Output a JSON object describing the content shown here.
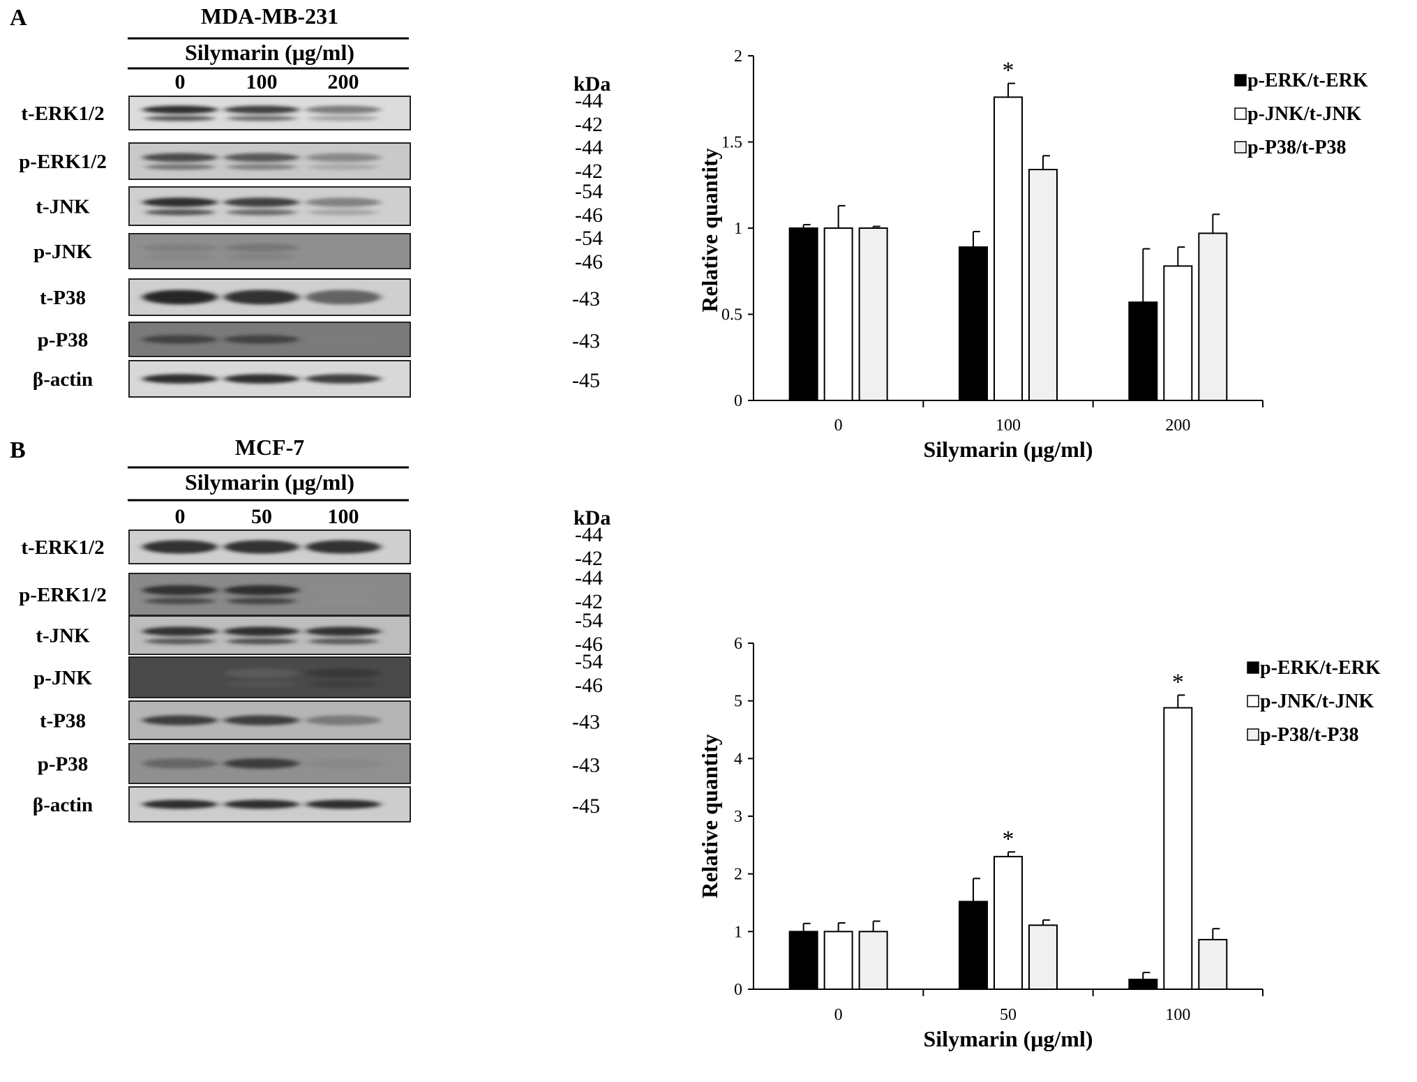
{
  "panels": [
    {
      "letter": "A",
      "cell_line": "MDA-MB-231",
      "treatment_label": "Silymarin (μg/ml)",
      "doses": [
        "0",
        "100",
        "200"
      ],
      "kda_label": "kDa",
      "rows": [
        {
          "label": "t-ERK1/2",
          "kda": [
            "-44",
            "-42"
          ]
        },
        {
          "label": "p-ERK1/2",
          "kda": [
            "-44",
            "-42"
          ]
        },
        {
          "label": "t-JNK",
          "kda": [
            "-54",
            "-46"
          ]
        },
        {
          "label": "p-JNK",
          "kda": [
            "-54",
            "-46"
          ]
        },
        {
          "label": "t-P38",
          "kda": [
            "-43"
          ]
        },
        {
          "label": "p-P38",
          "kda": [
            "-43"
          ]
        },
        {
          "label": "β-actin",
          "kda": [
            "-45"
          ]
        }
      ]
    },
    {
      "letter": "B",
      "cell_line": "MCF-7",
      "treatment_label": "Silymarin (μg/ml)",
      "doses": [
        "0",
        "50",
        "100"
      ],
      "kda_label": "kDa",
      "rows": [
        {
          "label": "t-ERK1/2",
          "kda": [
            "-44",
            "-42"
          ]
        },
        {
          "label": "p-ERK1/2",
          "kda": [
            "-44",
            "-42"
          ]
        },
        {
          "label": "t-JNK",
          "kda": [
            "-54",
            "-46"
          ]
        },
        {
          "label": "p-JNK",
          "kda": [
            "-54",
            "-46"
          ]
        },
        {
          "label": "t-P38",
          "kda": [
            "-43"
          ]
        },
        {
          "label": "p-P38",
          "kda": [
            "-43"
          ]
        },
        {
          "label": "β-actin",
          "kda": [
            "-45"
          ]
        }
      ]
    }
  ],
  "chart_data": [
    {
      "type": "bar",
      "title": "",
      "xlabel": "Silymarin (μg/ml)",
      "ylabel": "Relative quantity",
      "categories": [
        "0",
        "100",
        "200"
      ],
      "ylim": [
        0,
        2
      ],
      "yticks": [
        "0",
        "0.5",
        "1",
        "1.5",
        "2"
      ],
      "legend_position": "top-right",
      "series": [
        {
          "name": "p-ERK/t-ERK",
          "color": "#000000",
          "values": [
            1.0,
            0.89,
            0.57
          ],
          "errors": [
            0.02,
            0.09,
            0.31
          ]
        },
        {
          "name": "p-JNK/t-JNK",
          "color": "#ffffff",
          "values": [
            1.0,
            1.76,
            0.78
          ],
          "errors": [
            0.13,
            0.08,
            0.11
          ]
        },
        {
          "name": "p-P38/t-P38",
          "color": "#f0f0f0",
          "values": [
            1.0,
            1.34,
            0.97
          ],
          "errors": [
            0.01,
            0.08,
            0.11
          ]
        }
      ],
      "annotations": [
        {
          "text": "*",
          "series": 1,
          "category": 1
        }
      ]
    },
    {
      "type": "bar",
      "title": "",
      "xlabel": "Silymarin (μg/ml)",
      "ylabel": "Relative quantity",
      "categories": [
        "0",
        "50",
        "100"
      ],
      "ylim": [
        0,
        6
      ],
      "yticks": [
        "0",
        "1",
        "2",
        "3",
        "4",
        "5",
        "6"
      ],
      "legend_position": "top-right",
      "series": [
        {
          "name": "p-ERK/t-ERK",
          "color": "#000000",
          "values": [
            1.0,
            1.52,
            0.17
          ],
          "errors": [
            0.14,
            0.4,
            0.12
          ]
        },
        {
          "name": "p-JNK/t-JNK",
          "color": "#ffffff",
          "values": [
            1.0,
            2.3,
            4.88
          ],
          "errors": [
            0.15,
            0.08,
            0.22
          ]
        },
        {
          "name": "p-P38/t-P38",
          "color": "#f0f0f0",
          "values": [
            1.0,
            1.11,
            0.86
          ],
          "errors": [
            0.18,
            0.09,
            0.19
          ]
        }
      ],
      "annotations": [
        {
          "text": "*",
          "series": 1,
          "category": 1
        },
        {
          "text": "*",
          "series": 1,
          "category": 2
        }
      ]
    }
  ]
}
